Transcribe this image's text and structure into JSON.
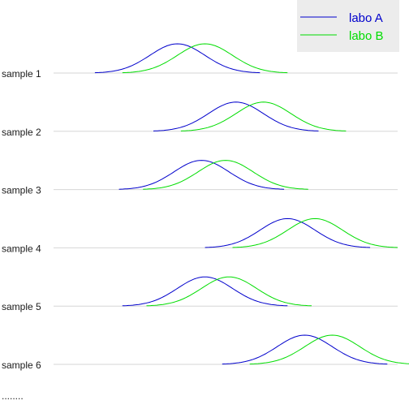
{
  "chart_data": {
    "type": "line",
    "title": "",
    "xlabel": "",
    "ylabel": "",
    "xlim": [
      0,
      100
    ],
    "grid": false,
    "legend_position": "top-right",
    "categories": [
      "sample 1",
      "sample 2",
      "sample 3",
      "sample 4",
      "sample 5",
      "sample 6"
    ],
    "series": [
      {
        "name": "labo A",
        "color": "#0000cc",
        "means": [
          36,
          53,
          43,
          68,
          44,
          73
        ],
        "sds": [
          8,
          8,
          8,
          8,
          8,
          8
        ]
      },
      {
        "name": "labo B",
        "color": "#00dd00",
        "means": [
          44,
          61,
          50,
          76,
          51,
          81
        ],
        "sds": [
          8,
          8,
          8,
          8,
          8,
          8
        ]
      }
    ],
    "footer_text": "........"
  }
}
